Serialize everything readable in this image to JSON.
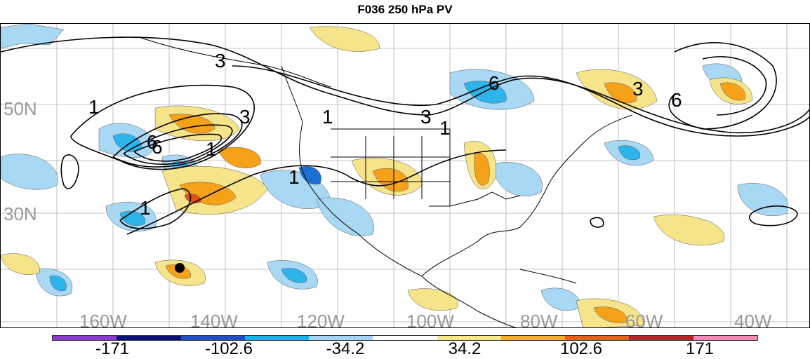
{
  "title": "F036 250 hPa PV",
  "map": {
    "lat_labels": [
      "50N",
      "30N"
    ],
    "lon_labels": [
      "160W",
      "140W",
      "120W",
      "100W",
      "80W",
      "60W",
      "40W"
    ],
    "contour_labels": [
      "3",
      "6",
      "1",
      "6",
      "3",
      "1",
      "1",
      "1",
      "3",
      "1",
      "6",
      "3",
      "6"
    ],
    "colors": {
      "pos_light": "#f6e48a",
      "pos_mid": "#f5a21a",
      "pos_strong": "#e84d12",
      "neg_light": "#a9d8f5",
      "neg_mid": "#2db4ea",
      "neg_strong": "#1c6fd0",
      "contour": "#000000",
      "grid": "#b0b0b0",
      "land": "#000000"
    }
  },
  "colorbar": {
    "labels": [
      "-171",
      "-102.6",
      "-34.2",
      "34.2",
      "102.6",
      "171"
    ],
    "colors": [
      "#8a3ccf",
      "#0a127a",
      "#2250c2",
      "#1ab2ec",
      "#a4d4f4",
      "#ffffff",
      "#f7e68a",
      "#f6ac2c",
      "#e8611c",
      "#b8262a",
      "#f38ab8"
    ]
  }
}
